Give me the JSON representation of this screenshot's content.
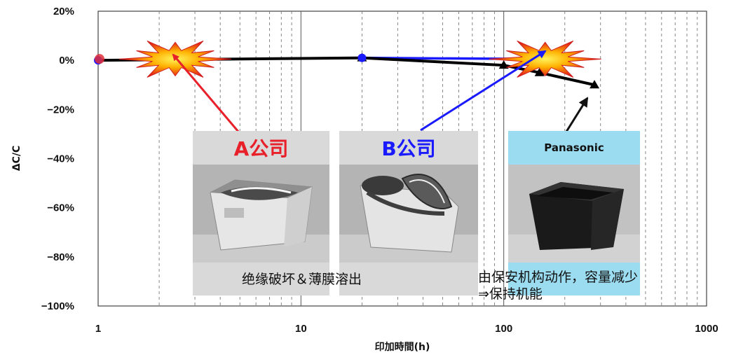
{
  "chart_data": {
    "type": "line",
    "xlabel": "印加時間(h)",
    "ylabel": "ΔC/C",
    "xscale": "log",
    "xlim": [
      1,
      1000
    ],
    "ylim": [
      -100,
      20
    ],
    "x_ticks": [
      "1",
      "10",
      "100",
      "1000"
    ],
    "y_ticks": [
      "20%",
      "0%",
      "−20%",
      "−40%",
      "−60%",
      "−80%",
      "−100%"
    ],
    "grid": "vertical dashed minor lines",
    "series": [
      {
        "marker": "circle",
        "color": "#1a1aff",
        "points": [
          [
            1,
            0
          ],
          [
            20,
            1
          ]
        ]
      },
      {
        "marker": "circle",
        "color": "#e0303a",
        "points": [
          [
            1,
            0
          ]
        ]
      },
      {
        "marker": "line",
        "color": "#1a1aff",
        "points": [
          [
            20,
            1
          ],
          [
            170,
            0.5
          ]
        ]
      },
      {
        "marker": "triangle",
        "color": "#000000",
        "points": [
          [
            1,
            0
          ],
          [
            20,
            1
          ],
          [
            100,
            -2
          ],
          [
            150,
            -5
          ],
          [
            280,
            -10
          ]
        ]
      }
    ],
    "annotations": [
      {
        "type": "burst",
        "x": 2.4,
        "y": 0.5
      },
      {
        "type": "burst",
        "x": 160,
        "y": 0.5
      }
    ]
  },
  "panels": [
    {
      "title": "A公司",
      "title_color": "#e8202a",
      "photo": "a-company-capacitor-photo"
    },
    {
      "title": "B公司",
      "title_color": "#1a1aff",
      "photo": "b-company-capacitor-photo"
    },
    {
      "title": "Panasonic",
      "title_color": "#111111",
      "photo": "panasonic-capacitor-photo"
    }
  ],
  "captions": {
    "ab": "绝缘破坏＆薄膜溶出",
    "panasonic_line1": "由保安机构动作，容量减少",
    "panasonic_line2": "⇒保持机能"
  },
  "colors": {
    "panel_gray": "#d9d9d9",
    "panel_cyan": "#9cdcf0",
    "arrow_a": "#e8202a",
    "arrow_b": "#1a1aff",
    "arrow_p": "#222222"
  }
}
